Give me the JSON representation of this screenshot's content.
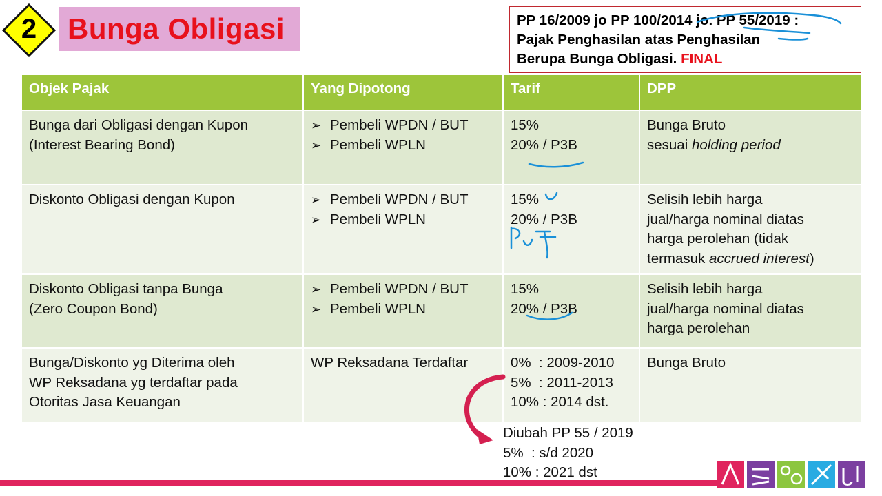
{
  "badge": {
    "number": "2",
    "color": "#ffff00"
  },
  "title": {
    "text": "Bunga Obligasi",
    "bg_color": "#e2a9d6",
    "text_color": "#e8111c"
  },
  "reference": {
    "lines": [
      "PP 16/2009 jo PP 100/2014 jo. PP 55/2019 :",
      "Pajak Penghasilan atas Penghasilan"
    ],
    "line3_prefix": "Berupa Bunga Obligasi. ",
    "line3_final": "FINAL"
  },
  "table": {
    "headers": [
      "Objek Pajak",
      "Yang Dipotong",
      "Tarif",
      "DPP"
    ],
    "header_color": "#9dc53a",
    "rows": [
      {
        "objek": [
          "Bunga dari Obligasi dengan Kupon",
          "(Interest Bearing Bond)"
        ],
        "dipotong": [
          "Pembeli WPDN / BUT",
          "Pembeli WPLN"
        ],
        "tarif": [
          "15%",
          "20% / P3B"
        ],
        "dpp_line1": "Bunga Bruto",
        "dpp_line2_prefix": "sesuai ",
        "dpp_line2_italic": "holding period"
      },
      {
        "objek": [
          "Diskonto Obligasi dengan Kupon"
        ],
        "dipotong": [
          "Pembeli WPDN / BUT",
          "Pembeli WPLN"
        ],
        "tarif": [
          "15%",
          "20% / P3B"
        ],
        "dpp_lines": [
          "Selisih lebih harga",
          "jual/harga nominal diatas",
          "harga perolehan (tidak"
        ],
        "dpp_last_prefix": "termasuk ",
        "dpp_last_italic": "accrued interest",
        "dpp_last_suffix": ")"
      },
      {
        "objek": [
          "Diskonto Obligasi tanpa Bunga",
          "(Zero Coupon Bond)"
        ],
        "dipotong": [
          "Pembeli WPDN / BUT",
          "Pembeli WPLN"
        ],
        "tarif": [
          "15%",
          "20% / P3B"
        ],
        "dpp_lines": [
          "Selisih lebih harga",
          "jual/harga nominal diatas",
          "harga perolehan"
        ]
      },
      {
        "objek": [
          "Bunga/Diskonto yg Diterima oleh",
          "WP Reksadana yg terdaftar pada",
          "Otoritas Jasa Keuangan"
        ],
        "dipotong_text": "WP Reksadana Terdaftar",
        "tarif": [
          "0%  : 2009-2010",
          "5%  : 2011-2013",
          "10% : 2014 dst."
        ],
        "dpp_lines": [
          "Bunga Bruto"
        ]
      }
    ]
  },
  "note": {
    "lines": [
      "Diubah PP 55 / 2019",
      "5%  : s/d 2020",
      "10% : 2021 dst"
    ]
  },
  "colors": {
    "arrow": "#d42050",
    "ink": "#1a90d8",
    "bottom_bar": "#e0245e"
  }
}
